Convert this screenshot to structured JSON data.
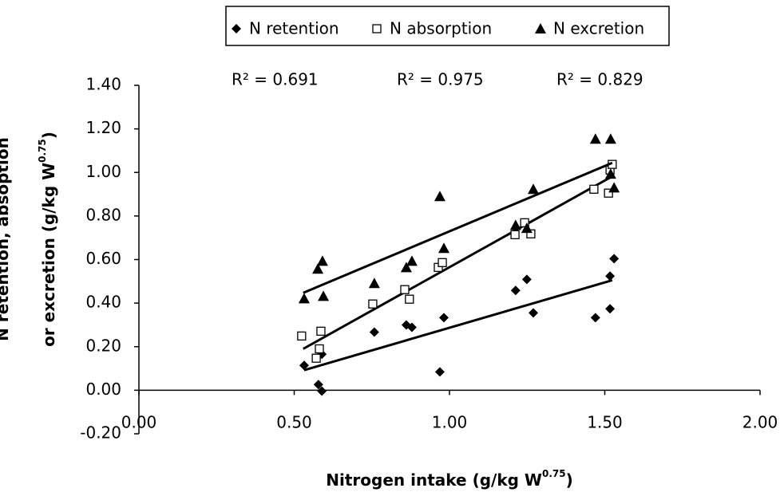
{
  "chart_data": {
    "type": "scatter",
    "xlabel": [
      "Nitrogen intake (g/kg W",
      "0.75",
      ")"
    ],
    "ylabel": [
      "N retention, absoption",
      "or excretion (g/kg W",
      "0.75",
      ")"
    ],
    "annotations": [
      "R² = 0.691",
      "R² = 0.975",
      "R² = 0.829"
    ],
    "xlim": [
      0,
      2
    ],
    "ylim": [
      -0.2,
      1.4
    ],
    "xticks": [
      {
        "value": 0,
        "label": "0.00"
      },
      {
        "value": 0.5,
        "label": "0.50"
      },
      {
        "value": 1,
        "label": "1.00"
      },
      {
        "value": 1.5,
        "label": "1.50"
      },
      {
        "value": 2,
        "label": "2.00"
      }
    ],
    "yticks": [
      {
        "value": -0.2,
        "label": "-0.20"
      },
      {
        "value": 0,
        "label": "0.00"
      },
      {
        "value": 0.2,
        "label": "0.20"
      },
      {
        "value": 0.4,
        "label": "0.40"
      },
      {
        "value": 0.6,
        "label": "0.60"
      },
      {
        "value": 0.8,
        "label": "0.80"
      },
      {
        "value": 1,
        "label": "1.00"
      },
      {
        "value": 1.2,
        "label": "1.20"
      },
      {
        "value": 1.4,
        "label": "1.40"
      }
    ],
    "legend": "top",
    "series": [
      {
        "name": "N retention",
        "color": "#000000",
        "marker": "diamond",
        "x": [
          0.532,
          0.589,
          0.578,
          0.589,
          0.758,
          0.861,
          0.879,
          0.982,
          0.969,
          1.213,
          1.249,
          1.27,
          1.47,
          1.517,
          1.517,
          1.53
        ],
        "values": [
          0.114,
          0.165,
          0.026,
          -0.004,
          0.267,
          0.3,
          0.289,
          0.333,
          0.084,
          0.458,
          0.509,
          0.355,
          0.333,
          0.374,
          0.524,
          0.604
        ],
        "trend_x": [
          0.532,
          1.524
        ],
        "trend_y": [
          0.092,
          0.505
        ]
      },
      {
        "name": "N absorption",
        "color": "#000000",
        "marker": "square",
        "x": [
          0.524,
          0.571,
          0.586,
          0.581,
          0.753,
          0.856,
          0.871,
          0.964,
          0.977,
          1.211,
          1.242,
          1.262,
          1.465,
          1.512,
          1.517,
          1.524
        ],
        "values": [
          0.249,
          0.147,
          0.271,
          0.19,
          0.396,
          0.462,
          0.418,
          0.564,
          0.586,
          0.714,
          0.769,
          0.718,
          0.923,
          0.905,
          1.011,
          1.037
        ],
        "trend_x": [
          0.529,
          1.524
        ],
        "trend_y": [
          0.19,
          0.982
        ]
      },
      {
        "name": "N excretion",
        "color": "#000000",
        "marker": "triangle",
        "x": [
          0.532,
          0.576,
          0.591,
          0.594,
          0.758,
          0.861,
          0.879,
          0.969,
          0.982,
          1.213,
          1.249,
          1.27,
          1.47,
          1.519,
          1.519,
          1.53
        ],
        "values": [
          0.421,
          0.557,
          0.593,
          0.432,
          0.491,
          0.564,
          0.593,
          0.89,
          0.652,
          0.758,
          0.744,
          0.923,
          1.154,
          1.154,
          0.993,
          0.93
        ],
        "trend_x": [
          0.529,
          1.524
        ],
        "trend_y": [
          0.447,
          1.044
        ]
      }
    ]
  }
}
